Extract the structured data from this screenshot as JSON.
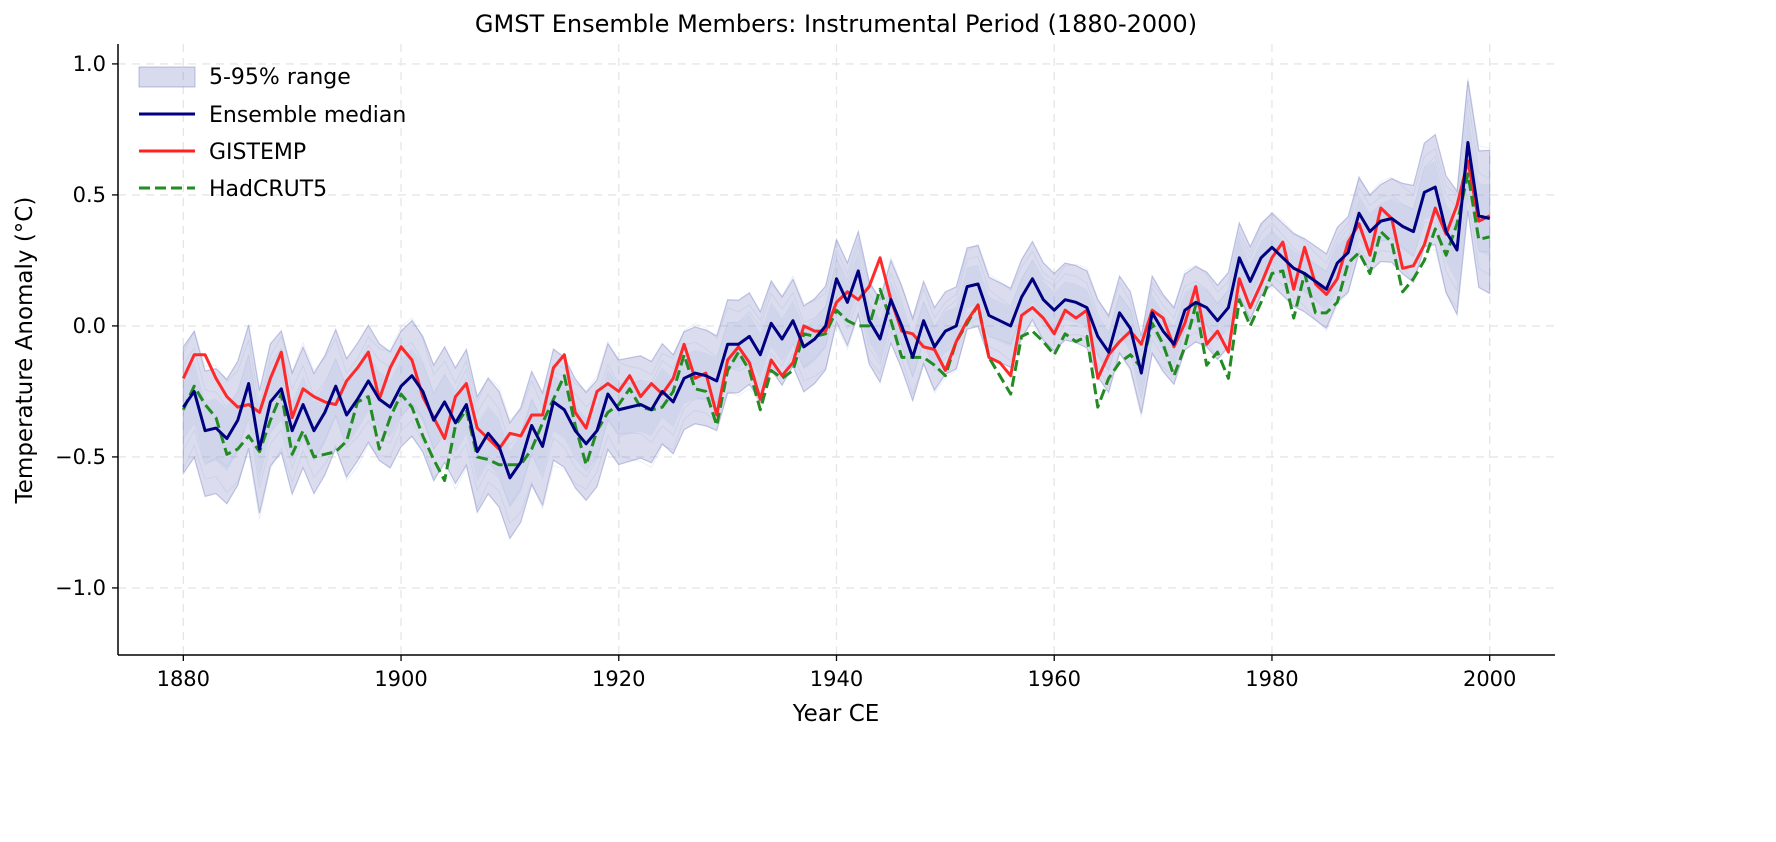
{
  "chart_data": {
    "type": "line",
    "title": "GMST Ensemble Members: Instrumental Period (1880-2000)",
    "xlabel": "Year CE",
    "ylabel": "Temperature Anomaly (°C)",
    "xlim": [
      1874,
      2006
    ],
    "ylim": [
      -1.256,
      1.076
    ],
    "xticks": [
      1880,
      1900,
      1920,
      1940,
      1960,
      1980,
      2000
    ],
    "xtick_labels": [
      "1880",
      "1900",
      "1920",
      "1940",
      "1960",
      "1980",
      "2000"
    ],
    "yticks": [
      -1.0,
      -0.5,
      0.0,
      0.5,
      1.0
    ],
    "ytick_labels": [
      "−1.0",
      "−0.5",
      "0.0",
      "0.5",
      "1.0"
    ],
    "grid": true,
    "legend_placement": "top-left",
    "legend": [
      "5-95% range",
      "Ensemble median",
      "GISTEMP",
      "HadCRUT5"
    ],
    "colors": {
      "band": "#7f86c4",
      "median": "#000080",
      "gistemp": "#ff2020",
      "hadcrut5": "#228b22"
    },
    "x_start": 1880,
    "x_end": 2000,
    "series": [
      {
        "name": "Ensemble median",
        "values": [
          -0.31,
          -0.25,
          -0.4,
          -0.39,
          -0.43,
          -0.36,
          -0.22,
          -0.47,
          -0.29,
          -0.24,
          -0.4,
          -0.3,
          -0.4,
          -0.33,
          -0.23,
          -0.34,
          -0.28,
          -0.21,
          -0.28,
          -0.31,
          -0.23,
          -0.19,
          -0.25,
          -0.36,
          -0.29,
          -0.37,
          -0.3,
          -0.48,
          -0.41,
          -0.46,
          -0.58,
          -0.52,
          -0.38,
          -0.46,
          -0.29,
          -0.32,
          -0.4,
          -0.45,
          -0.4,
          -0.26,
          -0.32,
          -0.31,
          -0.3,
          -0.32,
          -0.25,
          -0.29,
          -0.2,
          -0.18,
          -0.19,
          -0.21,
          -0.07,
          -0.07,
          -0.04,
          -0.11,
          0.01,
          -0.05,
          0.02,
          -0.08,
          -0.05,
          0.0,
          0.18,
          0.09,
          0.21,
          0.02,
          -0.05,
          0.1,
          0.0,
          -0.12,
          0.02,
          -0.08,
          -0.02,
          0.0,
          0.15,
          0.16,
          0.04,
          0.02,
          0.0,
          0.11,
          0.18,
          0.1,
          0.06,
          0.1,
          0.09,
          0.07,
          -0.04,
          -0.1,
          0.05,
          -0.01,
          -0.18,
          0.05,
          -0.02,
          -0.07,
          0.06,
          0.09,
          0.07,
          0.02,
          0.07,
          0.26,
          0.17,
          0.26,
          0.3,
          0.26,
          0.22,
          0.2,
          0.17,
          0.14,
          0.24,
          0.28,
          0.43,
          0.36,
          0.4,
          0.41,
          0.38,
          0.36,
          0.51,
          0.53,
          0.36,
          0.29,
          0.7,
          0.42,
          0.41
        ]
      },
      {
        "name": "GISTEMP",
        "values": [
          -0.2,
          -0.11,
          -0.11,
          -0.2,
          -0.27,
          -0.31,
          -0.3,
          -0.33,
          -0.2,
          -0.1,
          -0.35,
          -0.24,
          -0.27,
          -0.29,
          -0.3,
          -0.21,
          -0.16,
          -0.1,
          -0.28,
          -0.16,
          -0.08,
          -0.13,
          -0.27,
          -0.35,
          -0.43,
          -0.27,
          -0.22,
          -0.39,
          -0.43,
          -0.47,
          -0.41,
          -0.42,
          -0.34,
          -0.34,
          -0.16,
          -0.11,
          -0.33,
          -0.39,
          -0.25,
          -0.22,
          -0.25,
          -0.19,
          -0.27,
          -0.22,
          -0.26,
          -0.2,
          -0.07,
          -0.2,
          -0.18,
          -0.34,
          -0.13,
          -0.08,
          -0.14,
          -0.28,
          -0.13,
          -0.19,
          -0.14,
          0.0,
          -0.02,
          -0.02,
          0.09,
          0.13,
          0.1,
          0.15,
          0.26,
          0.1,
          -0.02,
          -0.03,
          -0.08,
          -0.09,
          -0.17,
          -0.06,
          0.02,
          0.08,
          -0.12,
          -0.14,
          -0.19,
          0.04,
          0.07,
          0.03,
          -0.03,
          0.06,
          0.03,
          0.06,
          -0.2,
          -0.11,
          -0.06,
          -0.02,
          -0.07,
          0.06,
          0.03,
          -0.08,
          0.01,
          0.15,
          -0.07,
          -0.02,
          -0.1,
          0.18,
          0.07,
          0.16,
          0.26,
          0.32,
          0.14,
          0.3,
          0.16,
          0.12,
          0.18,
          0.32,
          0.39,
          0.27,
          0.45,
          0.41,
          0.22,
          0.23,
          0.31,
          0.45,
          0.35,
          0.46,
          0.63,
          0.4,
          0.42
        ]
      },
      {
        "name": "HadCRUT5",
        "values": [
          -0.32,
          -0.23,
          -0.3,
          -0.35,
          -0.49,
          -0.47,
          -0.42,
          -0.48,
          -0.36,
          -0.26,
          -0.49,
          -0.4,
          -0.5,
          -0.49,
          -0.48,
          -0.44,
          -0.29,
          -0.27,
          -0.47,
          -0.35,
          -0.26,
          -0.31,
          -0.42,
          -0.51,
          -0.59,
          -0.38,
          -0.32,
          -0.5,
          -0.51,
          -0.53,
          -0.53,
          -0.53,
          -0.47,
          -0.37,
          -0.28,
          -0.19,
          -0.38,
          -0.53,
          -0.4,
          -0.33,
          -0.3,
          -0.24,
          -0.31,
          -0.32,
          -0.31,
          -0.25,
          -0.11,
          -0.24,
          -0.25,
          -0.38,
          -0.17,
          -0.1,
          -0.17,
          -0.32,
          -0.17,
          -0.2,
          -0.17,
          -0.03,
          -0.04,
          -0.03,
          0.06,
          0.02,
          0.0,
          0.0,
          0.14,
          0.02,
          -0.12,
          -0.12,
          -0.12,
          -0.15,
          -0.19,
          -0.06,
          0.01,
          0.08,
          -0.12,
          -0.19,
          -0.26,
          -0.04,
          -0.02,
          -0.06,
          -0.11,
          -0.03,
          -0.06,
          -0.04,
          -0.31,
          -0.2,
          -0.14,
          -0.11,
          -0.16,
          0.01,
          -0.07,
          -0.19,
          -0.08,
          0.08,
          -0.15,
          -0.1,
          -0.2,
          0.1,
          0.0,
          0.09,
          0.2,
          0.21,
          0.03,
          0.2,
          0.05,
          0.05,
          0.09,
          0.24,
          0.28,
          0.2,
          0.36,
          0.32,
          0.13,
          0.18,
          0.25,
          0.37,
          0.27,
          0.39,
          0.58,
          0.33,
          0.34
        ]
      }
    ],
    "band": {
      "name": "5-95% range",
      "halfwidth_by_decade_years": [
        1880,
        1890,
        1900,
        1910,
        1920,
        1930,
        1940,
        1950,
        1960,
        1970,
        1980,
        1990,
        2000
      ],
      "halfwidth_by_decade": [
        0.23,
        0.22,
        0.21,
        0.21,
        0.19,
        0.17,
        0.15,
        0.15,
        0.14,
        0.14,
        0.13,
        0.14,
        0.26
      ]
    }
  }
}
